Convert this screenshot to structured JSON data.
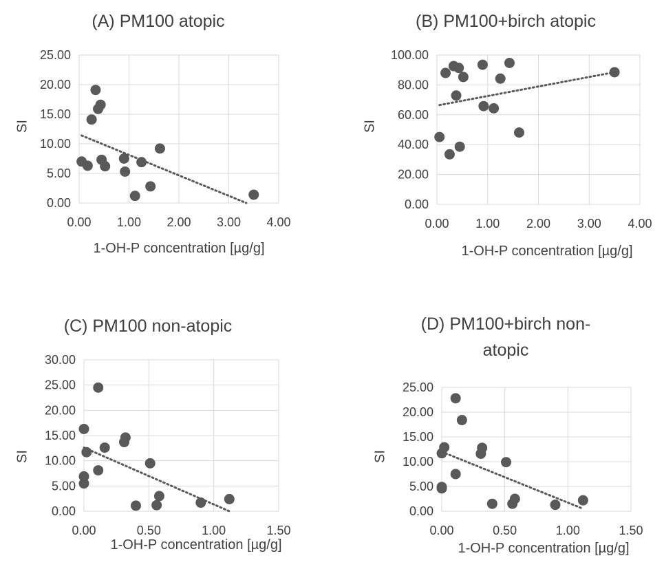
{
  "chart_data": [
    {
      "type": "scatter",
      "title": "(A) PM100 atopic",
      "xlabel": "1-OH-P concentration [µg/g]",
      "ylabel": "SI",
      "xlim": [
        0,
        4
      ],
      "ylim": [
        0,
        25
      ],
      "xticks": [
        "0.00",
        "1.00",
        "2.00",
        "3.00",
        "4.00"
      ],
      "yticks": [
        "0.00",
        "5.00",
        "10.00",
        "15.00",
        "20.00",
        "25.00"
      ],
      "grid": "horizontal and vertical",
      "trendline": {
        "style": "dotted linear",
        "x": [
          0.05,
          3.35
        ],
        "y": [
          11.4,
          0.0
        ]
      },
      "x": [
        0.05,
        0.17,
        0.25,
        0.33,
        0.38,
        0.43,
        0.45,
        0.52,
        0.9,
        0.92,
        1.12,
        1.25,
        1.43,
        1.62,
        3.5
      ],
      "y": [
        7.0,
        6.3,
        14.1,
        19.1,
        15.9,
        16.6,
        7.3,
        6.2,
        7.5,
        5.3,
        1.2,
        6.9,
        2.8,
        9.2,
        1.4
      ],
      "marker_color": "#595959"
    },
    {
      "type": "scatter",
      "title": "(B) PM100+birch atopic",
      "xlabel": "1-OH-P concentration [µg/g]",
      "ylabel": "SI",
      "xlim": [
        0,
        4
      ],
      "ylim": [
        0,
        100
      ],
      "xticks": [
        "0.00",
        "1.00",
        "2.00",
        "3.00",
        "4.00"
      ],
      "yticks": [
        "0.00",
        "20.00",
        "40.00",
        "60.00",
        "80.00",
        "100.00"
      ],
      "grid": "horizontal and vertical",
      "trendline": {
        "style": "dotted linear",
        "x": [
          0.05,
          3.5
        ],
        "y": [
          66.5,
          88.5
        ]
      },
      "x": [
        0.05,
        0.17,
        0.25,
        0.33,
        0.38,
        0.43,
        0.45,
        0.52,
        0.9,
        0.92,
        1.12,
        1.25,
        1.43,
        1.62,
        3.5
      ],
      "y": [
        45.1,
        88.0,
        33.5,
        92.6,
        72.9,
        91.4,
        38.6,
        85.3,
        93.5,
        65.8,
        64.3,
        84.2,
        94.7,
        48.1,
        88.5
      ],
      "marker_color": "#595959"
    },
    {
      "type": "scatter",
      "title": "(C) PM100 non-atopic",
      "xlabel": "1-OH-P concentration [µg/g]",
      "ylabel": "SI",
      "xlim": [
        0,
        1.5
      ],
      "ylim": [
        0,
        30
      ],
      "xticks": [
        "0.00",
        "0.50",
        "1.00",
        "1.50"
      ],
      "yticks": [
        "0.00",
        "5.00",
        "10.00",
        "15.00",
        "20.00",
        "25.00",
        "30.00"
      ],
      "grid": "horizontal and vertical",
      "trendline": {
        "style": "dotted linear",
        "x": [
          0.0,
          1.12
        ],
        "y": [
          12.6,
          0.0
        ]
      },
      "x": [
        0.0,
        0.0,
        0.0,
        0.02,
        0.11,
        0.11,
        0.16,
        0.31,
        0.32,
        0.4,
        0.51,
        0.56,
        0.58,
        0.9,
        1.12
      ],
      "y": [
        16.3,
        6.9,
        5.5,
        11.7,
        24.5,
        8.1,
        12.6,
        13.7,
        14.6,
        1.1,
        9.5,
        1.2,
        3.0,
        1.7,
        2.4
      ],
      "marker_color": "#595959"
    },
    {
      "type": "scatter",
      "title": "(D) PM100+birch non-\natopic",
      "xlabel": "1-OH-P concentration [µg/g]",
      "ylabel": "SI",
      "xlim": [
        0,
        1.5
      ],
      "ylim": [
        0,
        25
      ],
      "xticks": [
        "0.00",
        "0.50",
        "1.00",
        "1.50"
      ],
      "yticks": [
        "0.00",
        "5.00",
        "10.00",
        "15.00",
        "20.00",
        "25.00"
      ],
      "grid": "horizontal and vertical",
      "trendline": {
        "style": "dotted linear",
        "x": [
          0.0,
          1.12
        ],
        "y": [
          12.0,
          0.5
        ]
      },
      "x": [
        0.0,
        0.0,
        0.0,
        0.02,
        0.11,
        0.11,
        0.16,
        0.31,
        0.32,
        0.4,
        0.51,
        0.56,
        0.58,
        0.9,
        1.12
      ],
      "y": [
        11.7,
        4.9,
        4.6,
        12.9,
        22.8,
        7.5,
        18.4,
        11.6,
        12.8,
        1.5,
        9.9,
        1.5,
        2.5,
        1.3,
        2.2
      ],
      "marker_color": "#595959"
    }
  ]
}
